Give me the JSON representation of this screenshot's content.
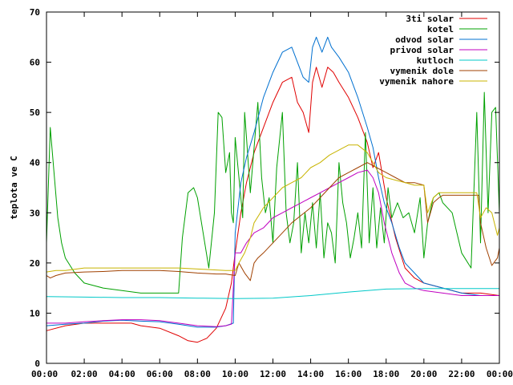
{
  "chart_data": {
    "type": "line",
    "title": "",
    "xlabel": "",
    "ylabel": "teplota ve C",
    "xlim": [
      "00:00",
      "00:00"
    ],
    "ylim": [
      0,
      70
    ],
    "x_ticks": [
      "00:00",
      "02:00",
      "04:00",
      "06:00",
      "08:00",
      "10:00",
      "12:00",
      "14:00",
      "16:00",
      "18:00",
      "20:00",
      "22:00",
      "00:00"
    ],
    "y_ticks": [
      "0",
      "10",
      "20",
      "30",
      "40",
      "50",
      "60",
      "70"
    ],
    "grid": false,
    "legend_position": "top-right",
    "x_unit": "hours since 00:00",
    "series": [
      {
        "name": "3ti solar",
        "color": "#e00000",
        "x": [
          0,
          1,
          2,
          3,
          4,
          4.5,
          5,
          6,
          7,
          7.5,
          8,
          8.5,
          9,
          9.5,
          9.8,
          10,
          10.3,
          10.6,
          11,
          11.5,
          12,
          12.5,
          13,
          13.3,
          13.6,
          13.9,
          14.1,
          14.3,
          14.6,
          14.9,
          15.2,
          15.5,
          16,
          16.5,
          17,
          17.3,
          17.6,
          18,
          18.5,
          19,
          19.5,
          20,
          21,
          22,
          23,
          24
        ],
        "y": [
          6.5,
          7.5,
          8,
          8,
          8,
          8,
          7.5,
          7,
          5.5,
          4.5,
          4.2,
          5,
          7,
          11,
          16,
          22,
          30,
          36,
          42,
          47,
          52,
          56,
          57,
          52,
          50,
          46,
          56,
          59,
          55,
          59,
          58,
          56,
          53,
          49,
          44,
          39,
          42,
          33,
          25,
          19,
          17,
          16,
          15,
          14,
          14,
          13.5
        ]
      },
      {
        "name": "kotel",
        "color": "#00a000",
        "x": [
          0,
          0.2,
          0.4,
          0.6,
          0.8,
          1,
          1.5,
          2,
          2.5,
          3,
          4,
          5,
          6,
          7,
          7.2,
          7.5,
          7.8,
          8,
          8.3,
          8.6,
          8.9,
          9.1,
          9.3,
          9.5,
          9.7,
          9.8,
          9.9,
          10,
          10.2,
          10.4,
          10.5,
          10.6,
          10.8,
          11,
          11.2,
          11.4,
          11.6,
          11.8,
          12,
          12.2,
          12.5,
          12.7,
          12.9,
          13.1,
          13.3,
          13.5,
          13.7,
          13.9,
          14.1,
          14.3,
          14.5,
          14.7,
          14.9,
          15.1,
          15.3,
          15.5,
          15.7,
          15.9,
          16.1,
          16.3,
          16.5,
          16.7,
          16.9,
          17.1,
          17.3,
          17.5,
          17.7,
          17.9,
          18.1,
          18.3,
          18.6,
          18.9,
          19.2,
          19.5,
          19.8,
          20,
          20.2,
          20.5,
          20.8,
          21,
          21.5,
          22,
          22.5,
          22.8,
          23,
          23.2,
          23.4,
          23.6,
          23.8,
          24
        ],
        "y": [
          24,
          47,
          38,
          29,
          24,
          21,
          18,
          16,
          15.5,
          15,
          14.5,
          14,
          14,
          14,
          25,
          34,
          35,
          33,
          26,
          19,
          30,
          50,
          49,
          38,
          42,
          30,
          28,
          45,
          37,
          29,
          50,
          45,
          34,
          43,
          52,
          37,
          30,
          33,
          24,
          39,
          50,
          30,
          24,
          28,
          40,
          22,
          30,
          24,
          32,
          23,
          34,
          21,
          28,
          26,
          20,
          40,
          32,
          28,
          21,
          25,
          30,
          23,
          46,
          24,
          35,
          23,
          31,
          24,
          35,
          29,
          32,
          29,
          30,
          26,
          33,
          21,
          28,
          33,
          34,
          32,
          30,
          22,
          19,
          50,
          24,
          54,
          30,
          50,
          51,
          30
        ]
      },
      {
        "name": "odvod solar",
        "color": "#0070d0",
        "x": [
          0,
          1,
          2,
          3,
          4,
          5,
          6,
          7,
          8,
          9,
          9.5,
          9.9,
          10,
          10.3,
          10.6,
          11,
          11.5,
          12,
          12.5,
          13,
          13.3,
          13.6,
          13.9,
          14.1,
          14.3,
          14.6,
          14.9,
          15.1,
          15.5,
          16,
          16.5,
          17,
          17.3,
          17.6,
          17.9,
          18.3,
          18.7,
          19,
          19.5,
          20,
          21,
          22,
          23,
          24
        ],
        "y": [
          7.5,
          7.8,
          8,
          8.4,
          8.6,
          8.4,
          8.3,
          7.8,
          7.2,
          7.2,
          7.5,
          8,
          26,
          36,
          41,
          46,
          53,
          58,
          62,
          63,
          60,
          57,
          56,
          63,
          65,
          62,
          65,
          63,
          61,
          58,
          53,
          47,
          43,
          37,
          32,
          28,
          23,
          20,
          18,
          16,
          15,
          14,
          13.5,
          13.5
        ]
      },
      {
        "name": "privod solar",
        "color": "#c000c0",
        "x": [
          0,
          1,
          2,
          3,
          4,
          5,
          6,
          7,
          8,
          9,
          9.5,
          9.8,
          10,
          10.3,
          10.6,
          11,
          11.5,
          12,
          12.5,
          13,
          13.5,
          14,
          14.5,
          15,
          15.5,
          16,
          16.5,
          17,
          17.3,
          17.6,
          17.9,
          18.3,
          18.7,
          19,
          19.5,
          20,
          21,
          22,
          23,
          24
        ],
        "y": [
          8,
          8,
          8.3,
          8.5,
          8.7,
          8.7,
          8.5,
          8,
          7.5,
          7.3,
          7.5,
          7.8,
          22,
          22,
          24,
          26,
          27,
          29,
          30,
          31,
          32,
          33,
          34,
          35,
          36,
          37,
          38,
          38.5,
          37,
          34,
          28,
          22,
          18,
          16,
          15,
          14.5,
          14,
          13.5,
          13.5,
          13.5
        ]
      },
      {
        "name": "kutloch",
        "color": "#00c8c8",
        "x": [
          0,
          2,
          4,
          6,
          8,
          10,
          12,
          14,
          16,
          18,
          20,
          22,
          24
        ],
        "y": [
          13.3,
          13.2,
          13.1,
          13.1,
          13.0,
          12.9,
          13.0,
          13.5,
          14.2,
          14.8,
          14.9,
          14.9,
          14.9
        ]
      },
      {
        "name": "vymenik dole",
        "color": "#a04000",
        "x": [
          0,
          0.2,
          0.5,
          1,
          2,
          3,
          4,
          5,
          6,
          7,
          8,
          9,
          9.5,
          10,
          10.2,
          10.5,
          10.8,
          11,
          11.2,
          11.5,
          12,
          12.5,
          13,
          13.5,
          14,
          14.5,
          15,
          15.5,
          16,
          16.5,
          17,
          17.5,
          18,
          18.5,
          19,
          19.5,
          20,
          20.2,
          20.5,
          20.8,
          21,
          22,
          22.9,
          23,
          23.3,
          23.6,
          23.9,
          24
        ],
        "y": [
          17.5,
          17,
          17.5,
          18,
          18.2,
          18.3,
          18.5,
          18.5,
          18.5,
          18.3,
          18,
          17.8,
          17.8,
          17.5,
          20,
          18,
          16.5,
          20,
          21,
          22,
          24,
          26,
          28,
          29.5,
          31,
          33,
          35,
          37,
          38,
          39,
          40,
          39,
          38,
          37,
          36,
          36,
          35.5,
          28,
          32,
          33,
          33.5,
          33.5,
          33.5,
          28,
          23,
          19.5,
          21,
          23
        ]
      },
      {
        "name": "vymenik nahore",
        "color": "#c8b400",
        "x": [
          0,
          0.5,
          1,
          2,
          3,
          4,
          5,
          6,
          7,
          8,
          9,
          9.5,
          10,
          10.2,
          10.5,
          10.8,
          11,
          11.5,
          12,
          12.5,
          13,
          13.5,
          14,
          14.5,
          15,
          15.5,
          16,
          16.5,
          17,
          17.3,
          17.6,
          18,
          18.5,
          19,
          19.5,
          20,
          20.2,
          20.5,
          20.8,
          21,
          22,
          22.8,
          23,
          23.3,
          23.6,
          23.9,
          24
        ],
        "y": [
          18.2,
          18.5,
          18.5,
          19,
          19,
          19,
          19,
          19,
          19,
          18.8,
          18.6,
          18.5,
          18.5,
          20,
          22,
          25,
          28,
          31,
          33,
          35,
          36,
          37,
          39,
          40,
          41.5,
          42.5,
          43.5,
          43.5,
          42,
          40,
          38,
          37,
          36.5,
          36,
          35.5,
          35.5,
          30,
          33,
          34,
          34,
          34,
          34,
          29,
          31,
          30,
          25.5,
          27
        ]
      }
    ]
  }
}
